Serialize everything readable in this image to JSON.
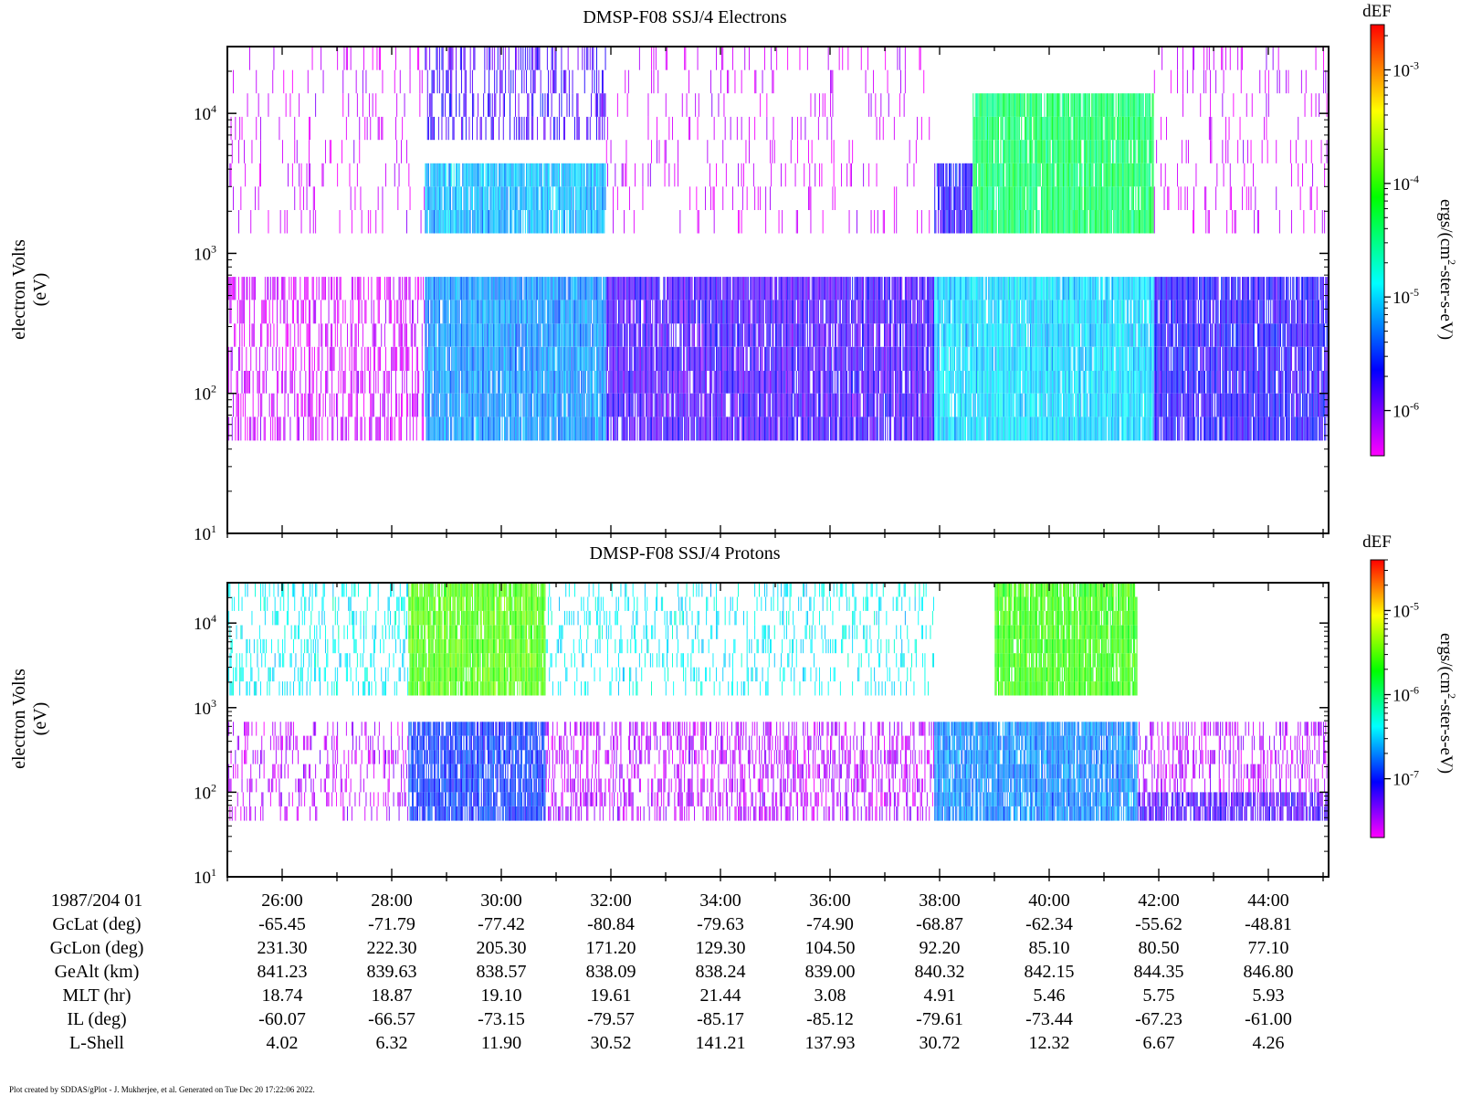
{
  "footer": "Plot created by SDDAS/gPlot - J. Mukherjee, et al.  Generated on Tue Dec 20 17:22:06 2022.",
  "colors": {
    "frame": "#000000",
    "colormap": [
      "#ff00ff",
      "#8000ff",
      "#0000ff",
      "#0080ff",
      "#00ffff",
      "#00ff80",
      "#00ff00",
      "#80ff00",
      "#ffff00",
      "#ff8000",
      "#ff0000"
    ]
  },
  "panels": [
    {
      "id": "electrons",
      "title": "DMSP-F08 SSJ/4 Electrons",
      "ylabel_line1": "electron Volts",
      "ylabel_line2": "(eV)",
      "y_ticks": [
        {
          "base": "10",
          "exp": "1",
          "value": 10
        },
        {
          "base": "10",
          "exp": "2",
          "value": 100
        },
        {
          "base": "10",
          "exp": "3",
          "value": 1000
        },
        {
          "base": "10",
          "exp": "4",
          "value": 10000
        }
      ],
      "colorbar": {
        "label": "dEF",
        "unit_a": "ergs/(cm",
        "unit_sup": "2",
        "unit_b": "-ster-s-eV)",
        "ticks": [
          {
            "base": "10",
            "exp": "-3",
            "value": 0.001
          },
          {
            "base": "10",
            "exp": "-4",
            "value": 0.0001
          },
          {
            "base": "10",
            "exp": "-5",
            "value": 1e-05
          },
          {
            "base": "10",
            "exp": "-6",
            "value": 1e-06
          }
        ]
      }
    },
    {
      "id": "protons",
      "title": "DMSP-F08 SSJ/4 Protons",
      "ylabel_line1": "electron Volts",
      "ylabel_line2": "(eV)",
      "y_ticks": [
        {
          "base": "10",
          "exp": "1",
          "value": 10
        },
        {
          "base": "10",
          "exp": "2",
          "value": 100
        },
        {
          "base": "10",
          "exp": "3",
          "value": 1000
        },
        {
          "base": "10",
          "exp": "4",
          "value": 10000
        }
      ],
      "colorbar": {
        "label": "dEF",
        "unit_a": "ergs/(cm",
        "unit_sup": "2",
        "unit_b": "-ster-s-eV)",
        "ticks": [
          {
            "base": "10",
            "exp": "-5",
            "value": 1e-05
          },
          {
            "base": "10",
            "exp": "-6",
            "value": 1e-06
          },
          {
            "base": "10",
            "exp": "-7",
            "value": 1e-07
          }
        ]
      }
    }
  ],
  "ephemeris": {
    "date_label": "1987/204 01",
    "rows": [
      {
        "label": "GcLat (deg)",
        "values": [
          "-65.45",
          "-71.79",
          "-77.42",
          "-80.84",
          "-79.63",
          "-74.90",
          "-68.87",
          "-62.34",
          "-55.62",
          "-48.81"
        ]
      },
      {
        "label": "GcLon (deg)",
        "values": [
          "231.30",
          "222.30",
          "205.30",
          "171.20",
          "129.30",
          "104.50",
          "92.20",
          "85.10",
          "80.50",
          "77.10"
        ]
      },
      {
        "label": "GeAlt (km)",
        "values": [
          "841.23",
          "839.63",
          "838.57",
          "838.09",
          "838.24",
          "839.00",
          "840.32",
          "842.15",
          "844.35",
          "846.80"
        ]
      },
      {
        "label": "MLT (hr)",
        "values": [
          "18.74",
          "18.87",
          "19.10",
          "19.61",
          "21.44",
          "3.08",
          "4.91",
          "5.46",
          "5.75",
          "5.93"
        ]
      },
      {
        "label": "IL (deg)",
        "values": [
          "-60.07",
          "-66.57",
          "-73.15",
          "-79.57",
          "-85.17",
          "-85.12",
          "-79.61",
          "-73.44",
          "-67.23",
          "-61.00"
        ]
      },
      {
        "label": "L-Shell",
        "values": [
          "4.02",
          "6.32",
          "11.90",
          "30.52",
          "141.21",
          "137.93",
          "30.72",
          "12.32",
          "6.67",
          "4.26"
        ]
      }
    ]
  },
  "chart_data": [
    {
      "type": "heatmap",
      "title": "DMSP-F08 SSJ/4 Electrons",
      "ylabel": "electron Volts (eV)",
      "y_scale": "log",
      "ylim": [
        10,
        30000
      ],
      "x_unit": "minutes after 1987/204 01:00 UT",
      "xlim": [
        25,
        45.1
      ],
      "x_tick_labels": [
        "26:00",
        "28:00",
        "30:00",
        "32:00",
        "34:00",
        "36:00",
        "38:00",
        "40:00",
        "42:00",
        "44:00"
      ],
      "colorbar_label": "dEF",
      "colorbar_unit": "ergs/(cm^2-ster-s-eV)",
      "colorbar_scale": "log",
      "zlim": [
        4e-07,
        0.0025
      ],
      "energy_channels_eV": [
        46,
        68,
        100,
        145,
        215,
        315,
        465,
        680,
        1390,
        2040,
        3000,
        4400,
        6460,
        9450,
        13900,
        20400,
        30000
      ],
      "regions": [
        {
          "t_range": [
            25.0,
            28.6
          ],
          "e_range": [
            46,
            680
          ],
          "level": 5e-07,
          "fill": 0.55
        },
        {
          "t_range": [
            25.0,
            28.6
          ],
          "e_range": [
            1390,
            30000
          ],
          "level": 5e-07,
          "fill": 0.12
        },
        {
          "t_range": [
            28.6,
            31.9
          ],
          "e_range": [
            46,
            680
          ],
          "level": 6e-06,
          "fill": 0.95
        },
        {
          "t_range": [
            28.6,
            31.9
          ],
          "e_range": [
            1390,
            4400
          ],
          "level": 8e-06,
          "fill": 0.9
        },
        {
          "t_range": [
            28.6,
            31.9
          ],
          "e_range": [
            6460,
            30000
          ],
          "level": 1.5e-06,
          "fill": 0.35
        },
        {
          "t_range": [
            31.9,
            37.9
          ],
          "e_range": [
            46,
            680
          ],
          "level": 1.5e-06,
          "fill": 0.9
        },
        {
          "t_range": [
            31.9,
            37.9
          ],
          "e_range": [
            1390,
            30000
          ],
          "level": 5e-07,
          "fill": 0.12
        },
        {
          "t_range": [
            37.9,
            41.9
          ],
          "e_range": [
            46,
            680
          ],
          "level": 1e-05,
          "fill": 0.95
        },
        {
          "t_range": [
            38.6,
            41.9
          ],
          "e_range": [
            1390,
            13900
          ],
          "level": 4e-05,
          "fill": 0.95
        },
        {
          "t_range": [
            37.9,
            38.6
          ],
          "e_range": [
            1390,
            4400
          ],
          "level": 2e-06,
          "fill": 0.8
        },
        {
          "t_range": [
            41.9,
            45.1
          ],
          "e_range": [
            46,
            680
          ],
          "level": 2e-06,
          "fill": 0.9
        },
        {
          "t_range": [
            41.9,
            45.1
          ],
          "e_range": [
            1390,
            30000
          ],
          "level": 5e-07,
          "fill": 0.15
        }
      ]
    },
    {
      "type": "heatmap",
      "title": "DMSP-F08 SSJ/4 Protons",
      "ylabel": "electron Volts (eV)",
      "y_scale": "log",
      "ylim": [
        10,
        30000
      ],
      "x_unit": "minutes after 1987/204 01:00 UT",
      "xlim": [
        25,
        45.1
      ],
      "x_tick_labels": [
        "26:00",
        "28:00",
        "30:00",
        "32:00",
        "34:00",
        "36:00",
        "38:00",
        "40:00",
        "42:00",
        "44:00"
      ],
      "colorbar_label": "dEF",
      "colorbar_unit": "ergs/(cm^2-ster-s-eV)",
      "colorbar_scale": "log",
      "zlim": [
        2e-08,
        4e-05
      ],
      "energy_channels_eV": [
        46,
        68,
        100,
        145,
        215,
        315,
        465,
        680,
        1390,
        2040,
        3000,
        4400,
        6460,
        9450,
        13900,
        20400,
        30000
      ],
      "regions": [
        {
          "t_range": [
            25.0,
            28.3
          ],
          "e_range": [
            46,
            680
          ],
          "level": 3e-08,
          "fill": 0.22
        },
        {
          "t_range": [
            25.0,
            28.3
          ],
          "e_range": [
            1390,
            30000
          ],
          "level": 4e-07,
          "fill": 0.25
        },
        {
          "t_range": [
            28.3,
            30.8
          ],
          "e_range": [
            46,
            680
          ],
          "level": 1.2e-07,
          "fill": 0.85
        },
        {
          "t_range": [
            28.3,
            30.8
          ],
          "e_range": [
            1390,
            30000
          ],
          "level": 3e-06,
          "fill": 0.9
        },
        {
          "t_range": [
            30.8,
            37.9
          ],
          "e_range": [
            46,
            680
          ],
          "level": 3e-08,
          "fill": 0.4
        },
        {
          "t_range": [
            30.8,
            37.9
          ],
          "e_range": [
            1390,
            30000
          ],
          "level": 4e-07,
          "fill": 0.18
        },
        {
          "t_range": [
            37.9,
            41.6
          ],
          "e_range": [
            46,
            680
          ],
          "level": 2e-07,
          "fill": 0.9
        },
        {
          "t_range": [
            39.0,
            41.6
          ],
          "e_range": [
            1390,
            30000
          ],
          "level": 2.5e-06,
          "fill": 0.9
        },
        {
          "t_range": [
            41.6,
            45.1
          ],
          "e_range": [
            46,
            100
          ],
          "level": 6e-08,
          "fill": 0.8
        },
        {
          "t_range": [
            41.6,
            45.1
          ],
          "e_range": [
            100,
            680
          ],
          "level": 3e-08,
          "fill": 0.35
        }
      ]
    }
  ]
}
